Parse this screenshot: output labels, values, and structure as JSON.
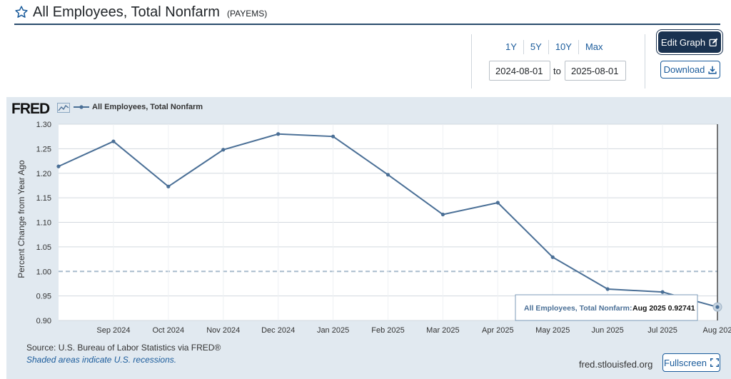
{
  "header": {
    "title": "All Employees, Total Nonfarm",
    "series_id": "(PAYEMS)"
  },
  "controls": {
    "ranges": [
      "1Y",
      "5Y",
      "10Y",
      "Max"
    ],
    "start_date": "2024-08-01",
    "to_label": "to",
    "end_date": "2025-08-01",
    "edit_label": "Edit Graph",
    "download_label": "Download"
  },
  "footer": {
    "source": "Source: U.S. Bureau of Labor Statistics via FRED®",
    "shaded": "Shaded areas indicate U.S. recessions.",
    "url": "fred.stlouisfed.org",
    "fullscreen_label": "Fullscreen"
  },
  "colors": {
    "line": "#4a6f96",
    "panel": "#e1e9f0",
    "accent": "#1a5b9b",
    "edit_bg": "#1a3250"
  },
  "logo": "FRED",
  "tooltip": {
    "label": "All Employees, Total Nonfarm:",
    "value": "Aug 2025 0.92741"
  },
  "chart_data": {
    "type": "line",
    "legend": "All Employees, Total Nonfarm",
    "ylabel": "Percent Change from Year Ago",
    "ylim": [
      0.9,
      1.3
    ],
    "yticks": [
      "0.90",
      "0.95",
      "1.00",
      "1.05",
      "1.10",
      "1.15",
      "1.20",
      "1.25",
      "1.30"
    ],
    "categories": [
      "Aug 2024",
      "Sep 2024",
      "Oct 2024",
      "Nov 2024",
      "Dec 2024",
      "Jan 2025",
      "Feb 2025",
      "Mar 2025",
      "Apr 2025",
      "May 2025",
      "Jun 2025",
      "Jul 2025",
      "Aug 2025"
    ],
    "xtick_labels": [
      "",
      "Sep 2024",
      "Oct 2024",
      "Nov 2024",
      "Dec 2024",
      "Jan 2025",
      "Feb 2025",
      "Mar 2025",
      "Apr 2025",
      "May 2025",
      "Jun 2025",
      "Jul 2025",
      "Aug 202"
    ],
    "values": [
      1.214,
      1.265,
      1.173,
      1.248,
      1.28,
      1.275,
      1.197,
      1.116,
      1.14,
      1.029,
      0.964,
      0.958,
      0.92741
    ],
    "reference_line": 1.0
  }
}
